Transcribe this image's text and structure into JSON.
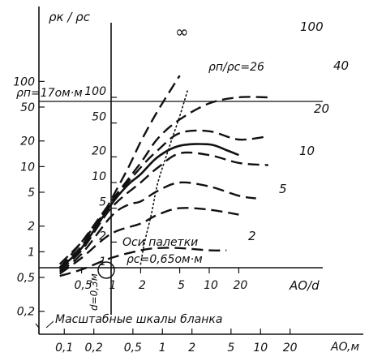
{
  "chart_data": {
    "type": "line",
    "outer_axes": {
      "y_ticks": [
        "0,2",
        "0,5",
        "1",
        "2",
        "5",
        "10",
        "20",
        "50",
        "100"
      ],
      "x_ticks": [
        "0,1",
        "0,2",
        "0,5",
        "1",
        "2",
        "5",
        "10",
        "20"
      ],
      "x_unit": "AO,м",
      "scale_note": "Масштабные шкалы бланка",
      "y_scale": "log",
      "x_scale": "log",
      "xlim": [
        0.1,
        20
      ],
      "ylim": [
        0.2,
        100
      ]
    },
    "inner_axes": {
      "ylabel": "ρк / ρс",
      "y_ticks": [
        "1",
        "2",
        "5",
        "10",
        "20",
        "50",
        "100"
      ],
      "x_ticks": [
        "0,5",
        "1",
        "2",
        "5",
        "10",
        "20"
      ],
      "xlabel": "AO/d",
      "d_label": "d=0,3м"
    },
    "annotations": {
      "rho_n": "ρп=17ом·м",
      "rho_ratio_label": "ρп/ρс=26",
      "origin_label": "Оси палетки",
      "rho_c": "ρc=0,65ом·м"
    },
    "curve_labels": [
      "∞",
      "100",
      "40",
      "20",
      "10",
      "5",
      "2"
    ],
    "series": [
      {
        "name": "∞",
        "x": [
          0.3,
          0.5,
          0.8,
          1,
          1.5,
          2,
          3,
          5
        ],
        "y": [
          1.1,
          2,
          4,
          6.3,
          15,
          30,
          70,
          180
        ]
      },
      {
        "name": "100",
        "x": [
          0.3,
          0.5,
          1,
          2,
          3,
          5,
          10,
          20,
          40
        ],
        "y": [
          1.0,
          2.0,
          6,
          17,
          33,
          55,
          85,
          100,
          100
        ]
      },
      {
        "name": "40",
        "x": [
          0.3,
          0.5,
          1,
          2,
          3,
          5,
          10,
          20,
          40
        ],
        "y": [
          1.0,
          1.8,
          5.8,
          15,
          24,
          38,
          40,
          32,
          35
        ]
      },
      {
        "name": "26",
        "x": [
          0.3,
          0.5,
          1,
          1.5,
          2,
          3,
          5,
          10,
          15,
          20
        ],
        "y": [
          1.0,
          1.7,
          5.5,
          9.5,
          12.5,
          20,
          27,
          28,
          24,
          21
        ]
      },
      {
        "name": "20",
        "x": [
          0.3,
          0.5,
          1,
          2,
          3,
          5,
          10,
          20,
          40
        ],
        "y": [
          0.95,
          1.6,
          5,
          10,
          15,
          22,
          21,
          17,
          16
        ]
      },
      {
        "name": "10",
        "x": [
          0.3,
          0.5,
          1,
          1.5,
          2,
          3,
          5,
          10,
          20,
          30
        ],
        "y": [
          0.9,
          1.45,
          4,
          5.5,
          6,
          8,
          10,
          9,
          7,
          6.5
        ]
      },
      {
        "name": "5",
        "x": [
          0.3,
          0.5,
          1,
          2,
          3,
          5,
          10,
          20
        ],
        "y": [
          0.85,
          1.3,
          2.5,
          3.3,
          4.2,
          5,
          4.8,
          4.2
        ]
      },
      {
        "name": "2",
        "x": [
          0.3,
          0.5,
          1,
          2,
          3,
          5,
          10,
          15
        ],
        "y": [
          0.8,
          0.95,
          1.3,
          1.6,
          1.7,
          1.7,
          1.6,
          1.6
        ]
      },
      {
        "name": "ρп/ρс=26 locus",
        "x": [
          2,
          2.2,
          2.6,
          3,
          4,
          5,
          6
        ],
        "y": [
          1.1,
          2,
          4.5,
          10,
          28,
          60,
          120
        ]
      }
    ]
  }
}
